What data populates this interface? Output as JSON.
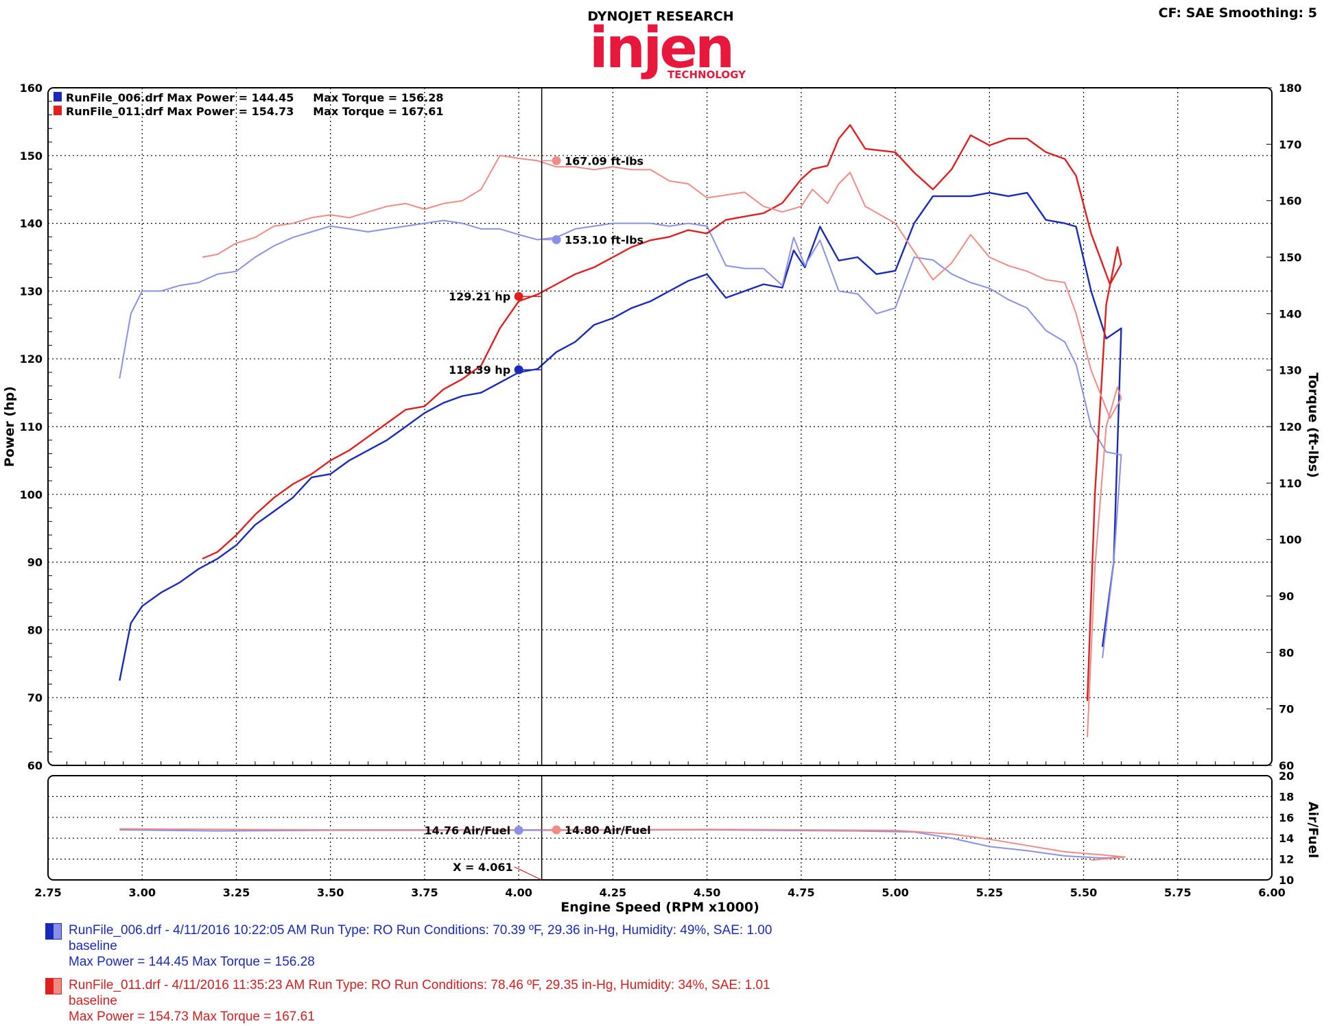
{
  "header": {
    "brand_line": "DYNOJET RESEARCH",
    "logo_word": "injen",
    "logo_sub": "TECHNOLOGY",
    "settings": "CF: SAE  Smoothing: 5"
  },
  "colors": {
    "run1_power": "#1a2ab8",
    "run1_torque": "#8a90e6",
    "run2_power": "#e01f1f",
    "run2_torque": "#f08a84",
    "logo": "#e8173c"
  },
  "legend": {
    "run1": "RunFile_006.drf Max Power = 144.45     Max Torque = 156.28",
    "run2": "RunFile_011.drf Max Power = 154.73     Max Torque = 167.61"
  },
  "cursor": {
    "x_label": "X = 4.061",
    "run2_torque": "167.09 ft-lbs",
    "run1_torque": "153.10 ft-lbs",
    "run2_power": "129.21 hp",
    "run1_power": "118.39 hp",
    "run1_afr": "14.76 Air/Fuel",
    "run2_afr": "14.80 Air/Fuel"
  },
  "chart_data": {
    "type": "line",
    "xlabel": "Engine Speed (RPM x1000)",
    "ylabel_left": "Power (hp)",
    "ylabel_right": "Torque (ft-lbs)",
    "ylabel_afr": "Air/Fuel",
    "xlim": [
      2.75,
      6.0
    ],
    "x_ticks": [
      "2.75",
      "3.00",
      "3.25",
      "3.50",
      "3.75",
      "4.00",
      "4.25",
      "4.50",
      "4.75",
      "5.00",
      "5.25",
      "5.50",
      "5.75",
      "6.00"
    ],
    "power_ylim": [
      60,
      160
    ],
    "power_ticks": [
      "60",
      "70",
      "80",
      "90",
      "100",
      "110",
      "120",
      "130",
      "140",
      "150",
      "160"
    ],
    "torque_ylim": [
      60,
      180
    ],
    "torque_ticks": [
      "60",
      "70",
      "80",
      "90",
      "100",
      "110",
      "120",
      "130",
      "140",
      "150",
      "160",
      "170",
      "180"
    ],
    "afr_ylim": [
      10,
      20
    ],
    "afr_ticks": [
      "10",
      "12",
      "14",
      "16",
      "18",
      "20"
    ],
    "cursor_x": 4.061,
    "grid": true,
    "legend_position": "top-left",
    "series": [
      {
        "name": "RunFile_006.drf",
        "metric": "power",
        "axis": "power",
        "points": [
          [
            2.94,
            72.5
          ],
          [
            2.97,
            81
          ],
          [
            3.0,
            83.5
          ],
          [
            3.05,
            85.5
          ],
          [
            3.1,
            87
          ],
          [
            3.15,
            89
          ],
          [
            3.2,
            90.5
          ],
          [
            3.25,
            92.5
          ],
          [
            3.3,
            95.5
          ],
          [
            3.35,
            97.5
          ],
          [
            3.4,
            99.5
          ],
          [
            3.45,
            102.5
          ],
          [
            3.5,
            103
          ],
          [
            3.55,
            105
          ],
          [
            3.6,
            106.5
          ],
          [
            3.65,
            108
          ],
          [
            3.7,
            110
          ],
          [
            3.75,
            112
          ],
          [
            3.8,
            113.5
          ],
          [
            3.85,
            114.5
          ],
          [
            3.9,
            115
          ],
          [
            3.95,
            116.5
          ],
          [
            4.0,
            118
          ],
          [
            4.05,
            118.5
          ],
          [
            4.1,
            121
          ],
          [
            4.15,
            122.5
          ],
          [
            4.2,
            125
          ],
          [
            4.25,
            126
          ],
          [
            4.3,
            127.5
          ],
          [
            4.35,
            128.5
          ],
          [
            4.4,
            130
          ],
          [
            4.45,
            131.5
          ],
          [
            4.5,
            132.5
          ],
          [
            4.55,
            129
          ],
          [
            4.6,
            130
          ],
          [
            4.65,
            131
          ],
          [
            4.7,
            130.5
          ],
          [
            4.73,
            136
          ],
          [
            4.76,
            133.5
          ],
          [
            4.8,
            139.5
          ],
          [
            4.85,
            134.5
          ],
          [
            4.9,
            135
          ],
          [
            4.95,
            132.5
          ],
          [
            5.0,
            133
          ],
          [
            5.05,
            140
          ],
          [
            5.1,
            144
          ],
          [
            5.15,
            144
          ],
          [
            5.2,
            144
          ],
          [
            5.25,
            144.5
          ],
          [
            5.3,
            144
          ],
          [
            5.35,
            144.5
          ],
          [
            5.4,
            140.5
          ],
          [
            5.45,
            140
          ],
          [
            5.48,
            139.5
          ],
          [
            5.52,
            130
          ],
          [
            5.56,
            123
          ],
          [
            5.6,
            124.5
          ],
          [
            5.58,
            90
          ],
          [
            5.55,
            77.5
          ]
        ]
      },
      {
        "name": "RunFile_006.drf",
        "metric": "torque",
        "axis": "torque",
        "points": [
          [
            2.94,
            128.5
          ],
          [
            2.97,
            140
          ],
          [
            3.0,
            144
          ],
          [
            3.05,
            144
          ],
          [
            3.1,
            145
          ],
          [
            3.15,
            145.5
          ],
          [
            3.2,
            147
          ],
          [
            3.25,
            147.5
          ],
          [
            3.3,
            150
          ],
          [
            3.35,
            152
          ],
          [
            3.4,
            153.5
          ],
          [
            3.45,
            154.5
          ],
          [
            3.5,
            155.5
          ],
          [
            3.55,
            155
          ],
          [
            3.6,
            154.5
          ],
          [
            3.65,
            155
          ],
          [
            3.7,
            155.5
          ],
          [
            3.75,
            156
          ],
          [
            3.8,
            156.5
          ],
          [
            3.85,
            156
          ],
          [
            3.9,
            155
          ],
          [
            3.95,
            155
          ],
          [
            4.0,
            154
          ],
          [
            4.05,
            153.1
          ],
          [
            4.1,
            153.5
          ],
          [
            4.15,
            155
          ],
          [
            4.2,
            155.5
          ],
          [
            4.25,
            156
          ],
          [
            4.3,
            156
          ],
          [
            4.35,
            156
          ],
          [
            4.4,
            155.5
          ],
          [
            4.45,
            156
          ],
          [
            4.5,
            155.5
          ],
          [
            4.55,
            148.5
          ],
          [
            4.6,
            148
          ],
          [
            4.65,
            148
          ],
          [
            4.7,
            145
          ],
          [
            4.73,
            153.5
          ],
          [
            4.76,
            148.5
          ],
          [
            4.8,
            153
          ],
          [
            4.85,
            144
          ],
          [
            4.9,
            143.5
          ],
          [
            4.95,
            140
          ],
          [
            5.0,
            141
          ],
          [
            5.05,
            150
          ],
          [
            5.1,
            149.5
          ],
          [
            5.15,
            147
          ],
          [
            5.2,
            145.5
          ],
          [
            5.25,
            144.5
          ],
          [
            5.3,
            142.5
          ],
          [
            5.35,
            141
          ],
          [
            5.4,
            137
          ],
          [
            5.45,
            135
          ],
          [
            5.48,
            131
          ],
          [
            5.52,
            120
          ],
          [
            5.56,
            115.5
          ],
          [
            5.6,
            115
          ],
          [
            5.58,
            96
          ],
          [
            5.55,
            79
          ]
        ]
      },
      {
        "name": "RunFile_011.drf",
        "metric": "power",
        "axis": "power",
        "points": [
          [
            3.16,
            90.5
          ],
          [
            3.2,
            91.5
          ],
          [
            3.25,
            94
          ],
          [
            3.3,
            97
          ],
          [
            3.35,
            99.5
          ],
          [
            3.4,
            101.5
          ],
          [
            3.45,
            103
          ],
          [
            3.5,
            105
          ],
          [
            3.55,
            106.5
          ],
          [
            3.6,
            108.5
          ],
          [
            3.65,
            110.5
          ],
          [
            3.7,
            112.5
          ],
          [
            3.75,
            113
          ],
          [
            3.8,
            115.5
          ],
          [
            3.85,
            117
          ],
          [
            3.9,
            119
          ],
          [
            3.95,
            124.5
          ],
          [
            4.0,
            128.5
          ],
          [
            4.05,
            129.5
          ],
          [
            4.1,
            131
          ],
          [
            4.15,
            132.5
          ],
          [
            4.2,
            133.5
          ],
          [
            4.25,
            135
          ],
          [
            4.3,
            136.5
          ],
          [
            4.35,
            137.5
          ],
          [
            4.4,
            138
          ],
          [
            4.45,
            139
          ],
          [
            4.5,
            138.5
          ],
          [
            4.55,
            140.5
          ],
          [
            4.6,
            141
          ],
          [
            4.65,
            141.5
          ],
          [
            4.7,
            143
          ],
          [
            4.75,
            146.5
          ],
          [
            4.78,
            148
          ],
          [
            4.82,
            148.5
          ],
          [
            4.85,
            152.5
          ],
          [
            4.88,
            154.5
          ],
          [
            4.92,
            151
          ],
          [
            5.0,
            150.5
          ],
          [
            5.05,
            147.5
          ],
          [
            5.1,
            145
          ],
          [
            5.15,
            148
          ],
          [
            5.2,
            153
          ],
          [
            5.25,
            151.5
          ],
          [
            5.3,
            152.5
          ],
          [
            5.35,
            152.5
          ],
          [
            5.4,
            150.5
          ],
          [
            5.45,
            149.5
          ],
          [
            5.48,
            147
          ],
          [
            5.52,
            138.5
          ],
          [
            5.57,
            131
          ],
          [
            5.6,
            134
          ],
          [
            5.59,
            136.5
          ],
          [
            5.56,
            128
          ],
          [
            5.53,
            100
          ],
          [
            5.51,
            69.5
          ]
        ]
      },
      {
        "name": "RunFile_011.drf",
        "metric": "torque",
        "axis": "torque",
        "points": [
          [
            3.16,
            150
          ],
          [
            3.2,
            150.5
          ],
          [
            3.25,
            152.5
          ],
          [
            3.3,
            153.5
          ],
          [
            3.35,
            155.5
          ],
          [
            3.4,
            156
          ],
          [
            3.45,
            157
          ],
          [
            3.5,
            157.5
          ],
          [
            3.55,
            157
          ],
          [
            3.6,
            158
          ],
          [
            3.65,
            159
          ],
          [
            3.7,
            159.5
          ],
          [
            3.75,
            158.5
          ],
          [
            3.8,
            159.5
          ],
          [
            3.85,
            160
          ],
          [
            3.9,
            162
          ],
          [
            3.95,
            168
          ],
          [
            4.0,
            167.5
          ],
          [
            4.05,
            167.09
          ],
          [
            4.1,
            166
          ],
          [
            4.15,
            166
          ],
          [
            4.2,
            165.5
          ],
          [
            4.25,
            166
          ],
          [
            4.3,
            165.5
          ],
          [
            4.35,
            165.5
          ],
          [
            4.4,
            163.5
          ],
          [
            4.45,
            163
          ],
          [
            4.5,
            160.5
          ],
          [
            4.55,
            161
          ],
          [
            4.6,
            161.5
          ],
          [
            4.65,
            159
          ],
          [
            4.7,
            158
          ],
          [
            4.75,
            159
          ],
          [
            4.78,
            162
          ],
          [
            4.82,
            159.5
          ],
          [
            4.85,
            163
          ],
          [
            4.88,
            165
          ],
          [
            4.92,
            159
          ],
          [
            5.0,
            156
          ],
          [
            5.05,
            151
          ],
          [
            5.1,
            146
          ],
          [
            5.15,
            149
          ],
          [
            5.2,
            154
          ],
          [
            5.25,
            150
          ],
          [
            5.3,
            148.5
          ],
          [
            5.35,
            147.5
          ],
          [
            5.4,
            146
          ],
          [
            5.45,
            145.5
          ],
          [
            5.48,
            140
          ],
          [
            5.52,
            130
          ],
          [
            5.57,
            121.5
          ],
          [
            5.6,
            125
          ],
          [
            5.59,
            127
          ],
          [
            5.56,
            120
          ],
          [
            5.53,
            95
          ],
          [
            5.51,
            65
          ]
        ]
      },
      {
        "name": "RunFile_006.drf",
        "metric": "afr",
        "axis": "afr",
        "points": [
          [
            2.94,
            14.8
          ],
          [
            3.2,
            14.7
          ],
          [
            3.5,
            14.76
          ],
          [
            4.061,
            14.76
          ],
          [
            4.5,
            14.8
          ],
          [
            4.9,
            14.7
          ],
          [
            5.05,
            14.6
          ],
          [
            5.15,
            14.0
          ],
          [
            5.25,
            13.2
          ],
          [
            5.35,
            12.8
          ],
          [
            5.45,
            12.3
          ],
          [
            5.55,
            12.1
          ],
          [
            5.61,
            12.2
          ]
        ]
      },
      {
        "name": "RunFile_011.drf",
        "metric": "afr",
        "axis": "afr",
        "points": [
          [
            2.94,
            14.9
          ],
          [
            3.2,
            14.85
          ],
          [
            3.5,
            14.8
          ],
          [
            4.061,
            14.8
          ],
          [
            4.5,
            14.85
          ],
          [
            5.0,
            14.75
          ],
          [
            5.15,
            14.4
          ],
          [
            5.25,
            13.9
          ],
          [
            5.35,
            13.3
          ],
          [
            5.45,
            12.7
          ],
          [
            5.55,
            12.4
          ],
          [
            5.61,
            12.2
          ],
          [
            5.52,
            11.9
          ]
        ]
      }
    ]
  },
  "footer": {
    "run1_line1": "RunFile_006.drf - 4/11/2016 10:22:05 AM  Run Type: RO  Run Conditions: 70.39 ºF, 29.36 in-Hg,  Humidity:  49%, SAE: 1.00",
    "run1_line2": "baseline",
    "run1_line3": "Max Power = 144.45  Max Torque = 156.28",
    "run2_line1": "RunFile_011.drf - 4/11/2016 11:35:23 AM  Run Type: RO  Run Conditions: 78.46 ºF, 29.35 in-Hg,  Humidity:  34%, SAE: 1.01",
    "run2_line2": "baseline",
    "run2_line3": "Max Power = 154.73  Max Torque = 167.61"
  }
}
